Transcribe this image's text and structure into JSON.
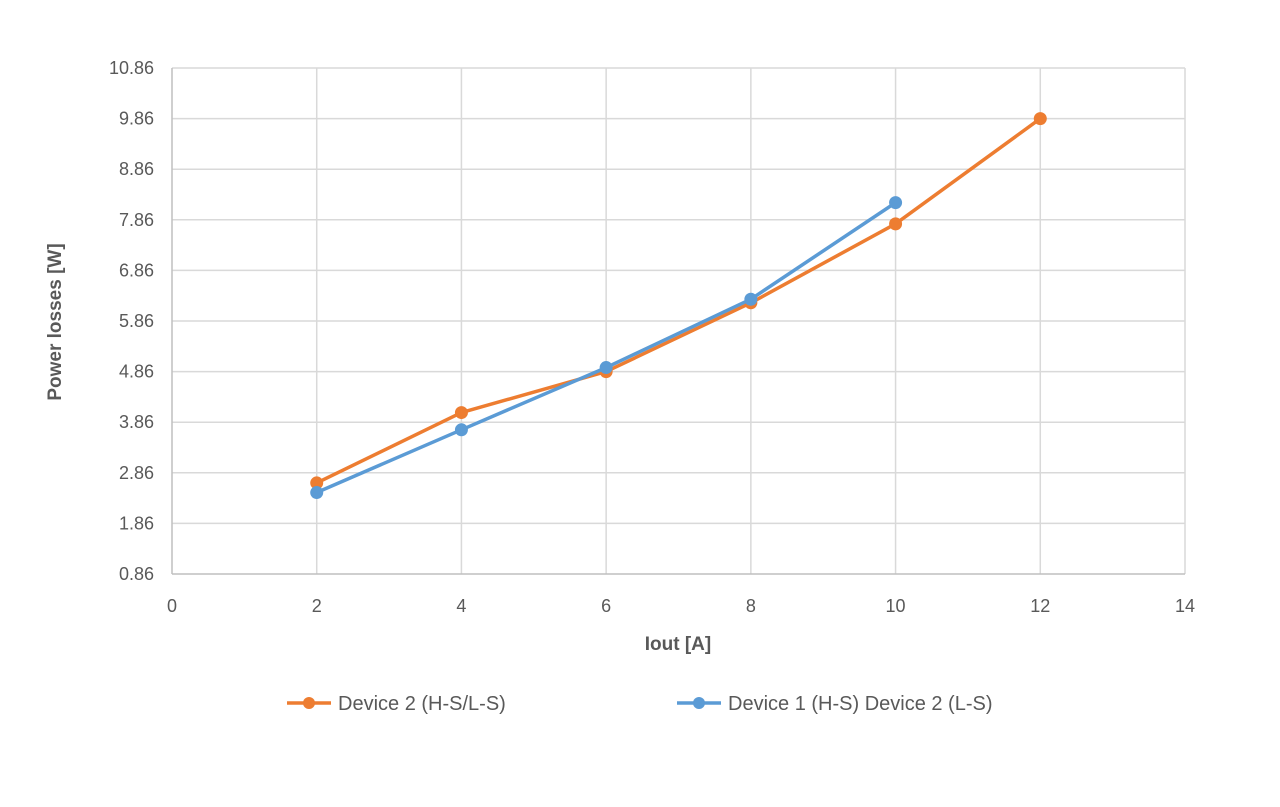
{
  "chart_data": {
    "type": "line",
    "title": "",
    "xlabel": "Iout [A]",
    "ylabel": "Power losses [W]",
    "xlim": [
      0,
      14
    ],
    "ylim": [
      0.86,
      10.86
    ],
    "x_ticks": [
      0,
      2,
      4,
      6,
      8,
      10,
      12,
      14
    ],
    "x_tick_labels": [
      "0",
      "2",
      "4",
      "6",
      "8",
      "10",
      "12",
      "14"
    ],
    "y_ticks": [
      0.86,
      1.86,
      2.86,
      3.86,
      4.86,
      5.86,
      6.86,
      7.86,
      8.86,
      9.86,
      10.86
    ],
    "y_tick_labels": [
      "0.86",
      "1.86",
      "2.86",
      "3.86",
      "4.86",
      "5.86",
      "6.86",
      "7.86",
      "8.86",
      "9.86",
      "10.86"
    ],
    "grid": true,
    "legend_position": "bottom",
    "series": [
      {
        "name": "Device 2 (H-S/L-S)",
        "color": "#ED7D31",
        "x": [
          2,
          4,
          6,
          8,
          10,
          12
        ],
        "y": [
          2.66,
          4.05,
          4.86,
          6.22,
          7.78,
          9.86
        ]
      },
      {
        "name": "Device 1 (H-S) Device 2 (L-S)",
        "color": "#5B9BD5",
        "x": [
          2,
          4,
          6,
          8,
          10
        ],
        "y": [
          2.47,
          3.71,
          4.94,
          6.29,
          8.2
        ]
      }
    ]
  }
}
